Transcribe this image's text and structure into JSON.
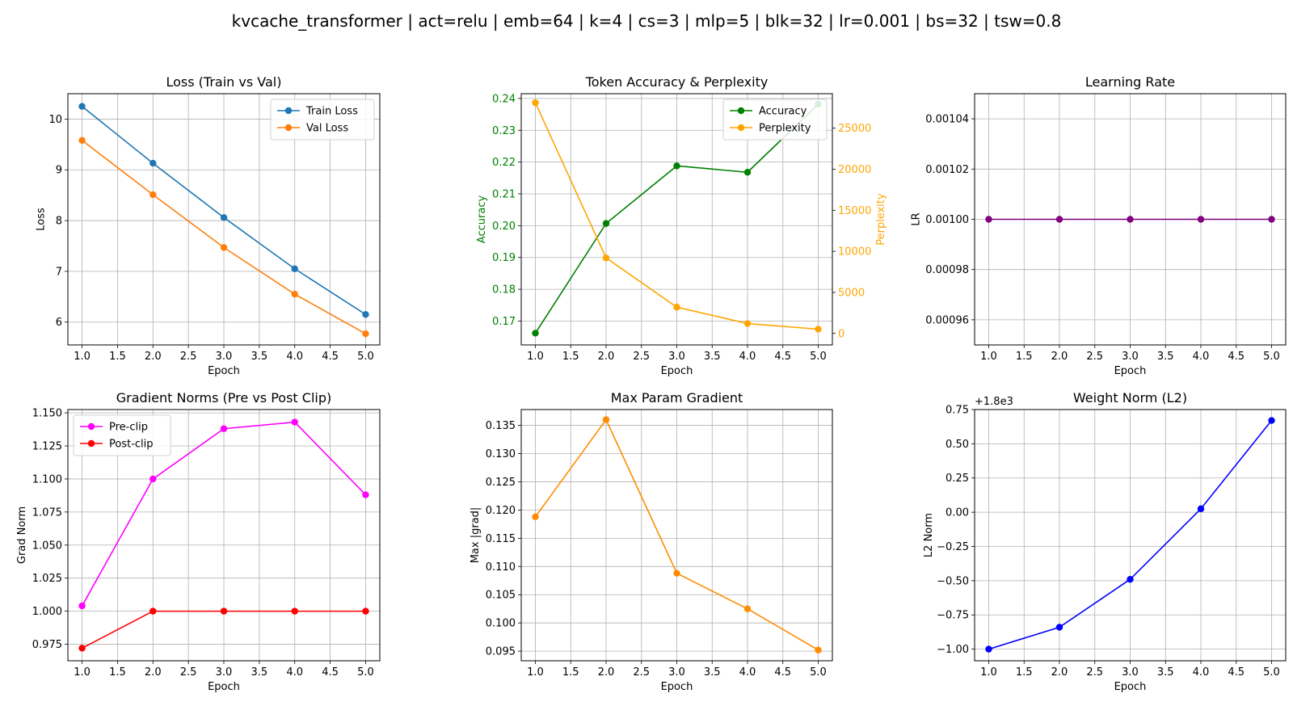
{
  "suptitle": "kvcache_transformer | act=relu | emb=64 | k=4 | cs=3 | mlp=5 | blk=32 | lr=0.001 | bs=32 | tsw=0.8",
  "chart_data": [
    {
      "id": "loss",
      "type": "line",
      "title": "Loss (Train vs Val)",
      "xlabel": "Epoch",
      "ylabel": "Loss",
      "x": [
        1,
        2,
        3,
        4,
        5
      ],
      "xlim": [
        0.8,
        5.2
      ],
      "ylim": [
        5.55,
        10.5
      ],
      "xticks": [
        1.0,
        1.5,
        2.0,
        2.5,
        3.0,
        3.5,
        4.0,
        4.5,
        5.0
      ],
      "yticks": [
        6,
        7,
        8,
        9,
        10
      ],
      "grid": true,
      "legend": "upper right",
      "series": [
        {
          "name": "Train Loss",
          "color": "#1f77b4",
          "values": [
            10.25,
            9.13,
            8.06,
            7.05,
            6.15
          ]
        },
        {
          "name": "Val Loss",
          "color": "#ff7f0e",
          "values": [
            9.58,
            8.51,
            7.47,
            6.55,
            5.77
          ]
        }
      ]
    },
    {
      "id": "acc",
      "type": "line",
      "title": "Token Accuracy & Perplexity",
      "xlabel": "Epoch",
      "ylabel": "Accuracy",
      "ylabel_color": "#008000",
      "ylabel2": "Perplexity",
      "ylabel2_color": "#ffa500",
      "x": [
        1,
        2,
        3,
        4,
        5
      ],
      "xlim": [
        0.8,
        5.2
      ],
      "ylim": [
        0.1625,
        0.2415
      ],
      "ylim2": [
        -1400,
        29200
      ],
      "xticks": [
        1.0,
        1.5,
        2.0,
        2.5,
        3.0,
        3.5,
        4.0,
        4.5,
        5.0
      ],
      "yticks": [
        0.17,
        0.18,
        0.19,
        0.2,
        0.21,
        0.22,
        0.23,
        0.24
      ],
      "yticks2": [
        0,
        5000,
        10000,
        15000,
        20000,
        25000
      ],
      "grid": true,
      "legend": "upper right",
      "series": [
        {
          "name": "Accuracy",
          "color": "#008000",
          "axis": "left",
          "values": [
            0.1662,
            0.2007,
            0.2188,
            0.2168,
            0.2382
          ]
        },
        {
          "name": "Perplexity",
          "color": "#ffa500",
          "axis": "right",
          "values": [
            28100,
            9200,
            3200,
            1200,
            520
          ]
        }
      ]
    },
    {
      "id": "lr",
      "type": "line",
      "title": "Learning Rate",
      "xlabel": "Epoch",
      "ylabel": "LR",
      "x": [
        1,
        2,
        3,
        4,
        5
      ],
      "xlim": [
        0.8,
        5.2
      ],
      "ylim": [
        0.00095,
        0.00105
      ],
      "xticks": [
        1.0,
        1.5,
        2.0,
        2.5,
        3.0,
        3.5,
        4.0,
        4.5,
        5.0
      ],
      "yticks": [
        0.00096,
        0.00098,
        0.001,
        0.00102,
        0.00104
      ],
      "ytick_labels": [
        "0.00096",
        "0.00098",
        "0.00100",
        "0.00102",
        "0.00104"
      ],
      "grid": true,
      "series": [
        {
          "name": "",
          "color": "#800080",
          "values": [
            0.001,
            0.001,
            0.001,
            0.001,
            0.001
          ]
        }
      ]
    },
    {
      "id": "grad",
      "type": "line",
      "title": "Gradient Norms (Pre vs Post Clip)",
      "xlabel": "Epoch",
      "ylabel": "Grad Norm",
      "x": [
        1,
        2,
        3,
        4,
        5
      ],
      "xlim": [
        0.8,
        5.2
      ],
      "ylim": [
        0.9625,
        1.1525
      ],
      "xticks": [
        1.0,
        1.5,
        2.0,
        2.5,
        3.0,
        3.5,
        4.0,
        4.5,
        5.0
      ],
      "yticks": [
        0.975,
        1.0,
        1.025,
        1.05,
        1.075,
        1.1,
        1.125,
        1.15
      ],
      "ytick_labels": [
        "0.975",
        "1.000",
        "1.025",
        "1.050",
        "1.075",
        "1.100",
        "1.125",
        "1.150"
      ],
      "grid": true,
      "legend": "upper left",
      "series": [
        {
          "name": "Pre-clip",
          "color": "#ff00ff",
          "values": [
            1.004,
            1.1,
            1.138,
            1.143,
            1.088
          ]
        },
        {
          "name": "Post-clip",
          "color": "#ff0000",
          "values": [
            0.972,
            1.0,
            1.0,
            1.0,
            1.0
          ]
        }
      ]
    },
    {
      "id": "maxgrad",
      "type": "line",
      "title": "Max Param Gradient",
      "xlabel": "Epoch",
      "ylabel": "Max |grad|",
      "x": [
        1,
        2,
        3,
        4,
        5
      ],
      "xlim": [
        0.8,
        5.2
      ],
      "ylim": [
        0.0933,
        0.1378
      ],
      "xticks": [
        1.0,
        1.5,
        2.0,
        2.5,
        3.0,
        3.5,
        4.0,
        4.5,
        5.0
      ],
      "yticks": [
        0.095,
        0.1,
        0.105,
        0.11,
        0.115,
        0.12,
        0.125,
        0.13,
        0.135
      ],
      "ytick_labels": [
        "0.095",
        "0.100",
        "0.105",
        "0.110",
        "0.115",
        "0.120",
        "0.125",
        "0.130",
        "0.135"
      ],
      "grid": true,
      "series": [
        {
          "name": "",
          "color": "#ff8c00",
          "values": [
            0.1188,
            0.136,
            0.1088,
            0.1025,
            0.0952
          ]
        }
      ]
    },
    {
      "id": "wnorm",
      "type": "line",
      "title": "Weight Norm (L2)",
      "xlabel": "Epoch",
      "ylabel": "L2 Norm",
      "offset_label": "+1.8e3",
      "x": [
        1,
        2,
        3,
        4,
        5
      ],
      "xlim": [
        0.8,
        5.2
      ],
      "ylim": [
        -1.085,
        0.75
      ],
      "xticks": [
        1.0,
        1.5,
        2.0,
        2.5,
        3.0,
        3.5,
        4.0,
        4.5,
        5.0
      ],
      "yticks": [
        -1.0,
        -0.75,
        -0.5,
        -0.25,
        0.0,
        0.25,
        0.5,
        0.75
      ],
      "ytick_labels": [
        "−1.00",
        "−0.75",
        "−0.50",
        "−0.25",
        "0.00",
        "0.25",
        "0.50",
        "0.75"
      ],
      "grid": true,
      "series": [
        {
          "name": "",
          "color": "#0000ff",
          "values": [
            -1.0,
            -0.84,
            -0.49,
            0.025,
            0.67
          ]
        }
      ]
    }
  ]
}
